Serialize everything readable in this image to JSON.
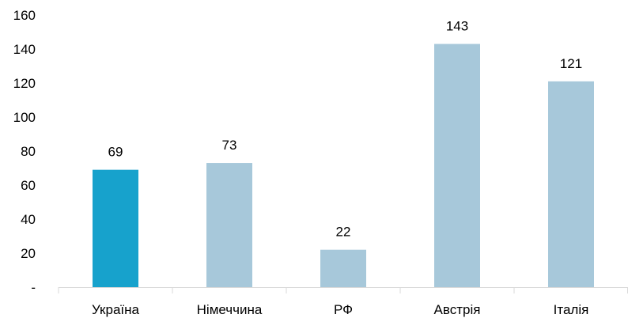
{
  "chart_data": {
    "type": "bar",
    "categories": [
      "Україна",
      "Німеччина",
      "РФ",
      "Австрія",
      "Італія"
    ],
    "values": [
      69,
      73,
      22,
      143,
      121
    ],
    "y_ticks": [
      "-",
      "20",
      "40",
      "60",
      "80",
      "100",
      "120",
      "140",
      "160"
    ],
    "ylim": [
      0,
      160
    ],
    "grid": false,
    "legend": "none",
    "colors": {
      "highlight": "#17A2CC",
      "bar": "#A7C8DA",
      "axis": "#D9D9D9",
      "text": "#000000"
    },
    "highlight_index": 0
  }
}
